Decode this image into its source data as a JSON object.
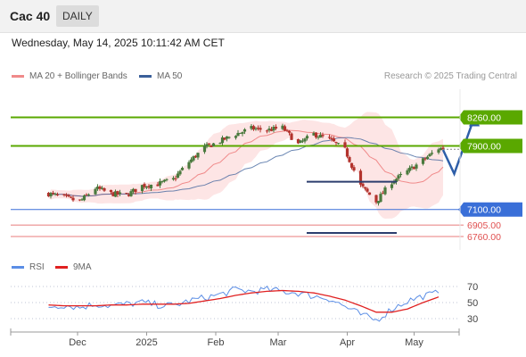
{
  "header": {
    "title": "Cac 40",
    "period": "DAILY"
  },
  "timestamp": "Wednesday, May 14, 2025 10:11:42 AM CET",
  "legend": {
    "bollinger": {
      "label": "MA 20 + Bollinger Bands",
      "color": "#f08a8a"
    },
    "ma50": {
      "label": "MA 50",
      "color": "#3a5f9a"
    }
  },
  "credit": "Research © 2025 Trading Central",
  "rsi_legend": {
    "rsi": {
      "label": "RSI",
      "color": "#5b8ee6"
    },
    "ma9": {
      "label": "9MA",
      "color": "#e02020"
    }
  },
  "chart_data": [
    {
      "type": "candlestick",
      "title": "Cac 40",
      "period": "DAILY",
      "x_tick_labels": [
        "Dec",
        "2025",
        "Feb",
        "Mar",
        "Apr",
        "May"
      ],
      "y_range": [
        6700,
        8400
      ],
      "price_series_approx": [
        [
          "2024-11-18",
          7300
        ],
        [
          "2024-11-25",
          7250
        ],
        [
          "2024-12-02",
          7200
        ],
        [
          "2024-12-09",
          7370
        ],
        [
          "2024-12-16",
          7300
        ],
        [
          "2024-12-23",
          7280
        ],
        [
          "2024-12-30",
          7400
        ],
        [
          "2025-01-06",
          7420
        ],
        [
          "2025-01-13",
          7480
        ],
        [
          "2025-01-20",
          7700
        ],
        [
          "2025-01-27",
          7880
        ],
        [
          "2025-02-03",
          7960
        ],
        [
          "2025-02-10",
          8050
        ],
        [
          "2025-02-17",
          8120
        ],
        [
          "2025-02-24",
          8100
        ],
        [
          "2025-03-03",
          8130
        ],
        [
          "2025-03-10",
          7920
        ],
        [
          "2025-03-17",
          8050
        ],
        [
          "2025-03-24",
          7980
        ],
        [
          "2025-03-31",
          7850
        ],
        [
          "2025-04-07",
          7400
        ],
        [
          "2025-04-14",
          7200
        ],
        [
          "2025-04-21",
          7450
        ],
        [
          "2025-04-28",
          7580
        ],
        [
          "2025-05-05",
          7720
        ],
        [
          "2025-05-12",
          7870
        ]
      ],
      "resistance_levels": [
        {
          "value": 8260.0,
          "label": "8260.00",
          "color": "#5aa800"
        },
        {
          "value": 7900.0,
          "label": "7900.00",
          "color": "#5aa800"
        }
      ],
      "pivot": {
        "value": 7100.0,
        "label": "7100.00",
        "color": "#3a6fd8"
      },
      "support_levels": [
        {
          "value": 6905.0,
          "label": "6905.00",
          "color": "#e05050"
        },
        {
          "value": 6760.0,
          "label": "6760.00",
          "color": "#e05050"
        }
      ],
      "forecast_path": [
        [
          "2025-05-14",
          7850
        ],
        [
          "2025-05-19",
          7550
        ],
        [
          "2025-05-28",
          8260
        ]
      ]
    },
    {
      "type": "line",
      "title": "RSI",
      "y_ticks": [
        70,
        50,
        30
      ],
      "series": [
        {
          "name": "RSI",
          "color": "#5b8ee6",
          "values": [
            45,
            47,
            44,
            48,
            46,
            48,
            50,
            47,
            46,
            52,
            56,
            60,
            66,
            64,
            66,
            64,
            62,
            58,
            55,
            45,
            35,
            28,
            42,
            52,
            58,
            62
          ]
        },
        {
          "name": "9MA",
          "color": "#e02020",
          "values": [
            47,
            46,
            46,
            46,
            47,
            47,
            48,
            48,
            48,
            49,
            52,
            55,
            59,
            62,
            64,
            65,
            64,
            62,
            58,
            53,
            46,
            38,
            38,
            42,
            50,
            57
          ]
        }
      ]
    }
  ]
}
